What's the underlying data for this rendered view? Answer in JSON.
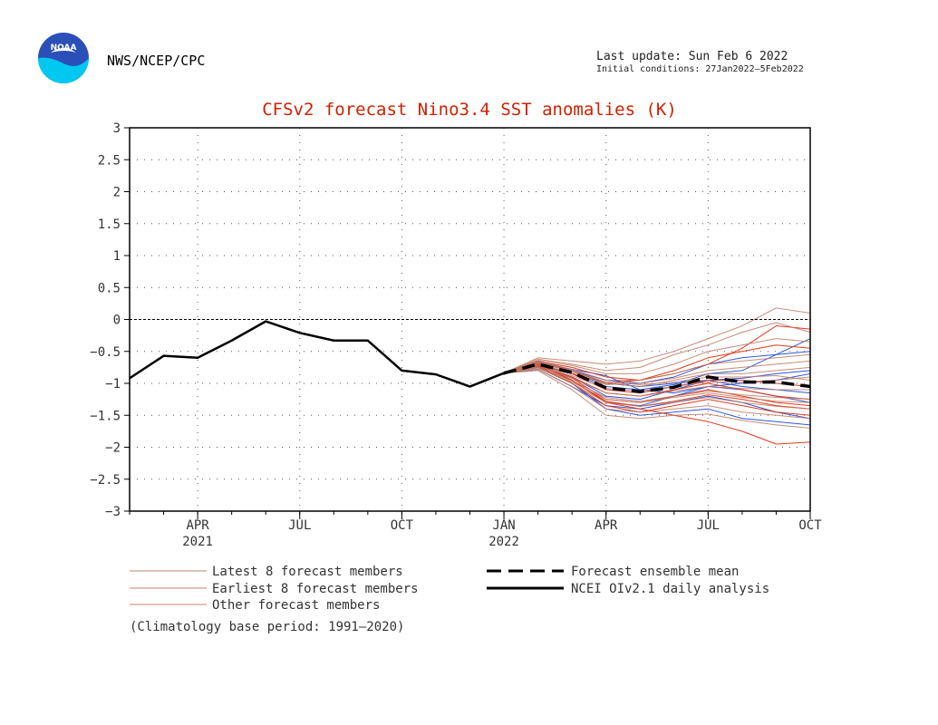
{
  "header": {
    "agency": "NWS/NCEP/CPC",
    "last_update": "Last update: Sun Feb 6 2022",
    "initial_conditions": "Initial conditions: 27Jan2022—5Feb2022",
    "logo_text": "NOAA"
  },
  "colors": {
    "title": "#d22000",
    "observed": "#000000",
    "ensemble_mean": "#000000",
    "latest_members": "#2050e0",
    "earliest_members": "#e03010",
    "other_members": "#c07860",
    "legend_swatch": "#c08070",
    "zero_line": "#000000",
    "grid": "#555555"
  },
  "chart_data": {
    "type": "line",
    "title": "CFSv2 forecast Nino3.4 SST anomalies (K)",
    "ylim": [
      -3,
      3
    ],
    "yticks": [
      "3",
      "2.5",
      "2",
      "1.5",
      "1",
      "0.5",
      "0",
      "−0.5",
      "−1",
      "−1.5",
      "−2",
      "−2.5",
      "−3"
    ],
    "ytick_values": [
      3,
      2.5,
      2,
      1.5,
      1,
      0.5,
      0,
      -0.5,
      -1,
      -1.5,
      -2,
      -2.5,
      -3
    ],
    "x_start": "2021-02",
    "x_end": "2022-10",
    "x_ticks": [
      {
        "month": "2021-04",
        "label": "APR",
        "year": "2021"
      },
      {
        "month": "2021-07",
        "label": "JUL",
        "year": ""
      },
      {
        "month": "2021-10",
        "label": "OCT",
        "year": ""
      },
      {
        "month": "2022-01",
        "label": "JAN",
        "year": "2022"
      },
      {
        "month": "2022-04",
        "label": "APR",
        "year": ""
      },
      {
        "month": "2022-07",
        "label": "JUL",
        "year": ""
      },
      {
        "month": "2022-10",
        "label": "OCT",
        "year": ""
      }
    ],
    "grid": true,
    "zero_line": true,
    "observed": {
      "name": "NCEI OIv2.1 daily analysis",
      "x": [
        "2021-02",
        "2021-03",
        "2021-04",
        "2021-05",
        "2021-06",
        "2021-07",
        "2021-08",
        "2021-09",
        "2021-10",
        "2021-11",
        "2021-12",
        "2022-01"
      ],
      "y": [
        -0.92,
        -0.57,
        -0.6,
        -0.33,
        -0.03,
        -0.21,
        -0.33,
        -0.33,
        -0.8,
        -0.86,
        -1.05,
        -0.84
      ]
    },
    "ensemble_mean": {
      "name": "Forecast ensemble mean",
      "x": [
        "2022-01",
        "2022-02",
        "2022-03",
        "2022-04",
        "2022-05",
        "2022-06",
        "2022-07",
        "2022-08",
        "2022-09",
        "2022-10"
      ],
      "y": [
        -0.84,
        -0.7,
        -0.83,
        -1.07,
        -1.13,
        -1.06,
        -0.9,
        -0.98,
        -0.98,
        -1.05
      ]
    },
    "forecast_months": [
      "2022-01",
      "2022-02",
      "2022-03",
      "2022-04",
      "2022-05",
      "2022-06",
      "2022-07",
      "2022-08",
      "2022-09",
      "2022-10"
    ],
    "members": [
      {
        "group": "latest",
        "y": [
          -0.84,
          -0.72,
          -0.85,
          -1.05,
          -1.1,
          -1.02,
          -0.85,
          -0.8,
          -0.55,
          -0.3
        ]
      },
      {
        "group": "latest",
        "y": [
          -0.84,
          -0.7,
          -0.95,
          -1.3,
          -1.35,
          -1.2,
          -1.05,
          -1.1,
          -1.2,
          -1.3
        ]
      },
      {
        "group": "latest",
        "y": [
          -0.84,
          -0.65,
          -0.8,
          -0.95,
          -1.0,
          -0.9,
          -0.7,
          -0.6,
          -0.55,
          -0.5
        ]
      },
      {
        "group": "latest",
        "y": [
          -0.84,
          -0.75,
          -1.0,
          -1.4,
          -1.5,
          -1.45,
          -1.4,
          -1.55,
          -1.6,
          -1.65
        ]
      },
      {
        "group": "latest",
        "y": [
          -0.84,
          -0.68,
          -0.78,
          -0.88,
          -1.1,
          -1.15,
          -1.05,
          -1.0,
          -0.95,
          -0.85
        ]
      },
      {
        "group": "latest",
        "y": [
          -0.84,
          -0.73,
          -0.9,
          -1.2,
          -1.25,
          -1.1,
          -0.95,
          -1.05,
          -1.1,
          -1.15
        ]
      },
      {
        "group": "latest",
        "y": [
          -0.84,
          -0.7,
          -0.85,
          -1.0,
          -1.05,
          -1.0,
          -0.95,
          -0.92,
          -0.85,
          -0.8
        ]
      },
      {
        "group": "latest",
        "y": [
          -0.84,
          -0.78,
          -1.05,
          -1.35,
          -1.4,
          -1.3,
          -1.2,
          -1.3,
          -1.45,
          -1.55
        ]
      },
      {
        "group": "earliest",
        "y": [
          -0.84,
          -0.7,
          -0.95,
          -1.3,
          -1.4,
          -1.5,
          -1.6,
          -1.75,
          -1.95,
          -1.92
        ]
      },
      {
        "group": "earliest",
        "y": [
          -0.84,
          -0.68,
          -0.8,
          -1.0,
          -0.95,
          -0.85,
          -0.7,
          -0.45,
          -0.1,
          -0.15
        ]
      },
      {
        "group": "earliest",
        "y": [
          -0.84,
          -0.72,
          -0.9,
          -1.15,
          -1.2,
          -1.1,
          -1.0,
          -1.1,
          -1.2,
          -1.25
        ]
      },
      {
        "group": "earliest",
        "y": [
          -0.84,
          -0.74,
          -1.0,
          -1.35,
          -1.45,
          -1.35,
          -1.25,
          -1.35,
          -1.45,
          -1.5
        ]
      },
      {
        "group": "earliest",
        "y": [
          -0.84,
          -0.66,
          -0.75,
          -0.9,
          -0.95,
          -0.8,
          -0.6,
          -0.5,
          -0.4,
          -0.45
        ]
      },
      {
        "group": "earliest",
        "y": [
          -0.84,
          -0.71,
          -0.92,
          -1.25,
          -1.3,
          -1.2,
          -1.1,
          -1.2,
          -1.3,
          -1.35
        ]
      },
      {
        "group": "earliest",
        "y": [
          -0.84,
          -0.69,
          -0.85,
          -1.1,
          -1.15,
          -1.05,
          -0.95,
          -0.95,
          -1.0,
          -1.05
        ]
      },
      {
        "group": "earliest",
        "y": [
          -0.84,
          -0.73,
          -0.96,
          -1.28,
          -1.36,
          -1.28,
          -1.18,
          -1.25,
          -1.35,
          -1.4
        ]
      },
      {
        "group": "other",
        "y": [
          -0.84,
          -0.6,
          -0.65,
          -0.7,
          -0.65,
          -0.5,
          -0.3,
          -0.1,
          0.18,
          0.1
        ]
      },
      {
        "group": "other",
        "y": [
          -0.84,
          -0.62,
          -0.7,
          -0.8,
          -0.75,
          -0.55,
          -0.4,
          -0.2,
          -0.05,
          -0.2
        ]
      },
      {
        "group": "other",
        "y": [
          -0.84,
          -0.64,
          -0.72,
          -0.85,
          -0.85,
          -0.7,
          -0.5,
          -0.4,
          -0.3,
          -0.35
        ]
      },
      {
        "group": "other",
        "y": [
          -0.84,
          -0.66,
          -0.78,
          -0.95,
          -0.95,
          -0.85,
          -0.7,
          -0.65,
          -0.6,
          -0.55
        ]
      },
      {
        "group": "other",
        "y": [
          -0.84,
          -0.68,
          -0.82,
          -1.0,
          -1.05,
          -0.95,
          -0.85,
          -0.85,
          -0.8,
          -0.75
        ]
      },
      {
        "group": "other",
        "y": [
          -0.84,
          -0.7,
          -0.88,
          -1.08,
          -1.12,
          -1.05,
          -0.98,
          -0.98,
          -0.95,
          -0.9
        ]
      },
      {
        "group": "other",
        "y": [
          -0.84,
          -0.72,
          -0.92,
          -1.15,
          -1.2,
          -1.12,
          -1.05,
          -1.08,
          -1.1,
          -1.1
        ]
      },
      {
        "group": "other",
        "y": [
          -0.84,
          -0.74,
          -0.96,
          -1.22,
          -1.28,
          -1.2,
          -1.12,
          -1.18,
          -1.22,
          -1.25
        ]
      },
      {
        "group": "other",
        "y": [
          -0.84,
          -0.76,
          -1.0,
          -1.3,
          -1.36,
          -1.3,
          -1.22,
          -1.3,
          -1.36,
          -1.4
        ]
      },
      {
        "group": "other",
        "y": [
          -0.84,
          -0.78,
          -1.05,
          -1.4,
          -1.45,
          -1.4,
          -1.35,
          -1.45,
          -1.5,
          -1.55
        ]
      },
      {
        "group": "other",
        "y": [
          -0.84,
          -0.8,
          -1.1,
          -1.5,
          -1.55,
          -1.5,
          -1.48,
          -1.58,
          -1.65,
          -1.7
        ]
      },
      {
        "group": "other",
        "y": [
          -0.84,
          -0.7,
          -0.84,
          -1.02,
          -1.0,
          -0.92,
          -0.8,
          -0.75,
          -0.7,
          -0.65
        ]
      },
      {
        "group": "other",
        "y": [
          -0.84,
          -0.67,
          -0.8,
          -0.98,
          -1.02,
          -0.98,
          -0.9,
          -0.9,
          -0.88,
          -0.95
        ]
      },
      {
        "group": "other",
        "y": [
          -0.84,
          -0.75,
          -0.98,
          -1.25,
          -1.3,
          -1.22,
          -1.15,
          -1.22,
          -1.28,
          -1.3
        ]
      }
    ],
    "legend": [
      {
        "label": "Latest 8 forecast members",
        "style": "swatch"
      },
      {
        "label": "Earliest 8 forecast members",
        "style": "swatch"
      },
      {
        "label": "Other forecast members",
        "style": "swatch"
      },
      {
        "label": "Forecast ensemble mean",
        "style": "dashed"
      },
      {
        "label": "NCEI OIv2.1 daily analysis",
        "style": "solid"
      }
    ]
  },
  "footnote": "(Climatology base period: 1991—2020)"
}
